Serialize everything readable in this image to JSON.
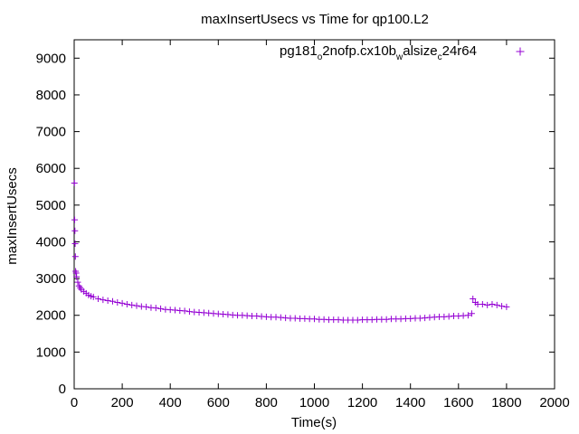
{
  "chart_data": {
    "type": "scatter",
    "title": "maxInsertUsecs vs Time for qp100.L2",
    "xlabel": "Time(s)",
    "ylabel": "maxInsertUsecs",
    "xlim": [
      0,
      2000
    ],
    "ylim": [
      0,
      9500
    ],
    "xticks": [
      "0",
      "200",
      "400",
      "600",
      "800",
      "1000",
      "1200",
      "1400",
      "1600",
      "1800",
      "2000"
    ],
    "yticks": [
      "0",
      "1000",
      "2000",
      "3000",
      "4000",
      "5000",
      "6000",
      "7000",
      "8000",
      "9000"
    ],
    "grid": false,
    "legend_position": "top-right",
    "marker": "+",
    "color": "#9400d3",
    "legend": {
      "parts": [
        {
          "text": "pg181",
          "sub": false
        },
        {
          "text": "o",
          "sub": true
        },
        {
          "text": "2nofp.cx10b",
          "sub": false
        },
        {
          "text": "w",
          "sub": true
        },
        {
          "text": "alsize",
          "sub": false
        },
        {
          "text": "c",
          "sub": true
        },
        {
          "text": "24r64",
          "sub": false
        }
      ]
    },
    "series": [
      {
        "name": "pg181_o2nofp.cx10b_walsize_c24r64",
        "x": [
          1,
          2,
          3,
          4,
          5,
          6,
          8,
          10,
          15,
          20,
          25,
          30,
          40,
          50,
          60,
          70,
          80,
          100,
          120,
          140,
          160,
          180,
          200,
          220,
          240,
          260,
          280,
          300,
          320,
          340,
          360,
          380,
          400,
          420,
          440,
          460,
          480,
          500,
          520,
          540,
          560,
          580,
          600,
          620,
          640,
          660,
          680,
          700,
          720,
          740,
          760,
          780,
          800,
          820,
          840,
          860,
          880,
          900,
          920,
          940,
          960,
          980,
          1000,
          1020,
          1040,
          1060,
          1080,
          1100,
          1120,
          1140,
          1160,
          1180,
          1200,
          1220,
          1240,
          1260,
          1280,
          1300,
          1320,
          1340,
          1360,
          1380,
          1400,
          1420,
          1440,
          1460,
          1480,
          1500,
          1520,
          1540,
          1560,
          1580,
          1600,
          1620,
          1640,
          1655,
          1660,
          1670,
          1680,
          1700,
          1720,
          1740,
          1760,
          1780,
          1800
        ],
        "y": [
          5600,
          4600,
          4300,
          3950,
          3600,
          3200,
          3150,
          3050,
          2900,
          2800,
          2750,
          2700,
          2650,
          2600,
          2550,
          2520,
          2500,
          2450,
          2420,
          2400,
          2380,
          2350,
          2330,
          2300,
          2280,
          2260,
          2240,
          2230,
          2210,
          2200,
          2180,
          2160,
          2150,
          2140,
          2130,
          2120,
          2100,
          2090,
          2080,
          2070,
          2060,
          2050,
          2040,
          2030,
          2020,
          2010,
          2000,
          2000,
          1990,
          1980,
          1980,
          1970,
          1960,
          1950,
          1950,
          1940,
          1930,
          1920,
          1920,
          1910,
          1910,
          1900,
          1900,
          1890,
          1890,
          1880,
          1880,
          1880,
          1870,
          1870,
          1870,
          1870,
          1880,
          1880,
          1880,
          1890,
          1890,
          1890,
          1900,
          1900,
          1900,
          1910,
          1910,
          1920,
          1920,
          1930,
          1940,
          1950,
          1960,
          1960,
          1970,
          1980,
          1980,
          1990,
          2000,
          2050,
          2450,
          2350,
          2300,
          2300,
          2280,
          2300,
          2280,
          2250,
          2230
        ]
      }
    ]
  }
}
